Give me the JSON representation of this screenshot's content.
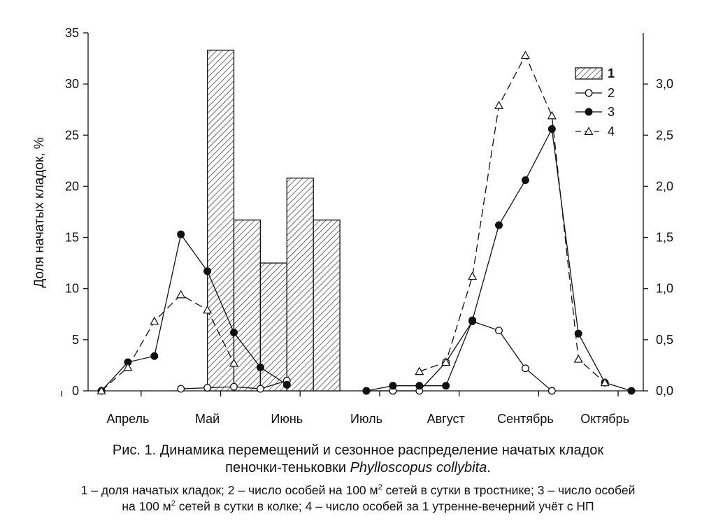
{
  "chart_data": {
    "type": "bar+line",
    "ylabel": "Доля начатых кладок, %",
    "ylim": [
      0,
      35
    ],
    "y_ticks": [
      "0",
      "5",
      "10",
      "15",
      "20",
      "25",
      "30",
      "35"
    ],
    "y2lim": [
      0,
      3.5
    ],
    "y2_ticks": [
      "0,0",
      "0,5",
      "1,0",
      "1,5",
      "2,0",
      "2,5",
      "3,0"
    ],
    "months": [
      "Апрель",
      "Май",
      "Июнь",
      "Июль",
      "Август",
      "Сентябрь",
      "Октябрь"
    ],
    "x_period": "pentads (5-day periods), 3 per month label",
    "legend": [
      "1",
      "2",
      "3",
      "4"
    ],
    "legend_position": "top-right",
    "bars": {
      "name": "1",
      "axis": "left",
      "x": [
        4.5,
        5.5,
        6.5,
        7.5,
        8.5
      ],
      "values": [
        33.3,
        16.7,
        12.5,
        20.8,
        16.7
      ]
    },
    "series": [
      {
        "name": "2",
        "axis": "right",
        "marker": "open-circle",
        "line": "solid",
        "segments": [
          {
            "x": [
              3,
              4,
              5,
              6,
              7
            ],
            "y": [
              0.02,
              0.03,
              0.04,
              0.02,
              0.1
            ]
          },
          {
            "x": [
              10,
              11,
              12,
              13,
              14,
              15,
              16,
              17
            ],
            "y": [
              0.0,
              0.0,
              0.0,
              0.28,
              0.68,
              0.59,
              0.22,
              0.0
            ]
          }
        ]
      },
      {
        "name": "3",
        "axis": "right",
        "marker": "filled-circle",
        "line": "solid",
        "segments": [
          {
            "x": [
              0,
              1,
              2,
              3,
              4,
              5,
              6,
              7
            ],
            "y": [
              0.0,
              0.28,
              0.34,
              1.53,
              1.17,
              0.57,
              0.23,
              0.06
            ]
          },
          {
            "x": [
              10,
              11,
              12,
              13,
              14,
              15,
              16,
              17,
              18,
              19,
              20
            ],
            "y": [
              0.0,
              0.05,
              0.05,
              0.05,
              0.69,
              1.62,
              2.06,
              2.56,
              0.56,
              0.08,
              0.0
            ]
          }
        ]
      },
      {
        "name": "4",
        "axis": "right",
        "marker": "open-triangle",
        "line": "dashed",
        "segments": [
          {
            "x": [
              0,
              1,
              2,
              3,
              4,
              5
            ],
            "y": [
              0.0,
              0.23,
              0.68,
              0.94,
              0.79,
              0.27
            ]
          },
          {
            "x": [
              12,
              13,
              14,
              15,
              16,
              17,
              18,
              19
            ],
            "y": [
              0.19,
              0.28,
              1.12,
              2.79,
              3.28,
              2.69,
              0.31,
              0.08
            ]
          }
        ]
      }
    ]
  },
  "caption": {
    "title_prefix": "Рис. 1. Динамика перемещений и сезонное распределение начатых кладок",
    "title_line2_prefix": "пеночки-теньковки",
    "species_latin": "Phylloscopus collybita",
    "title_line2_suffix": ".",
    "legend_line1_a": "1 – доля начатых кладок; 2 – число особей на 100 м",
    "legend_line1_b": " сетей в сутки в тростнике; 3 – число особей",
    "legend_line2_a": "на 100 м",
    "legend_line2_b": " сетей в сутки в колке; 4 – число особей за 1 утренне-вечерний учёт с НП",
    "superscript": "2"
  }
}
